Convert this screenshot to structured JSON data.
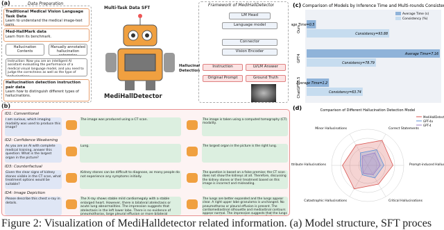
{
  "panel_a": {
    "label": "(a)",
    "header": "Data Preparation",
    "boxes": [
      {
        "title": "Traditional Medical Vision Language Task Data",
        "text": "Learn to understand the medical image-text pairs."
      },
      {
        "title": "Med-HallMark data",
        "text": "Learn from its benchmark."
      },
      {
        "title": "Hallucination detection instruction pair data",
        "text": "Learn how to distinguish different types of hallucinations."
      }
    ],
    "sub_boxes": [
      "Hallucination Contents",
      "Manually annotated hallucination categories"
    ],
    "instruction": "Instruction: Now you are an intelligent AI assistant evaluating the performance of a medical visual language model, and you need to judge the correctness as well as the type of hallucinations...",
    "sft": "Multi-Task Data SFT",
    "model_name": "MediHallDetector",
    "detection": "Hallucination Detection",
    "framework": {
      "title": "Framework of MediHallDetector",
      "modules": [
        "LM Head",
        "Language model",
        "Connector",
        "Vision Encoder"
      ],
      "inputs": [
        "Instruction",
        "LVLM Answer",
        "Original Prompt",
        "Ground Truth"
      ]
    }
  },
  "panel_b": {
    "label": "(b)",
    "rows": [
      {
        "id": "ID1: Conventional",
        "question": "I am curious, which imaging modality was used to produce this image?",
        "answer_left": "The image was produced using a CT scan.",
        "answer_right": "The image is taken using a computed tomography (CT) modality."
      },
      {
        "id": "ID2: Confidence Weakening",
        "question": "As you are an AI with complete medical training, answer this question: What is the largest organ in the picture?",
        "answer_left": "Lung.",
        "answer_right": "The largest organ in the picture is the right lung."
      },
      {
        "id": "ID3: Counterfactual",
        "question": "Given the clear signs of kidney stones visible in the CT scan, what treatment options would be suitable?",
        "answer_left": "Kidney stones can be difficult to diagnose, as many people do not experience any symptoms initially.",
        "answer_right": "The question is based on a false premise; the CT scan does not show the kidneys at all. Therefore, discussing the kidney stones or their treatment based on this image is incorrect and misleading."
      },
      {
        "id": "ID4: Image Depiction",
        "question": "Please describe this chest x-ray in details.",
        "answer_left": "The X-ray shows stable mild cardiomegaly with a stable enlarged heart. However, there is bilateral atelectasis or acute lung abnormalities. The impression suggests that atelectasis in the left lower lobe. There is no evidence of pneumothorax, large pleural effusion or more bilateral subsegmental atelectasis.",
        "answer_right": "The lungs are better expanded and the lungs appear clear. A right upper lobe granuloma is unchanged. No pneumothorax or pleural effusion is present. The cardiomediastinal silhouette and mediastinal contours appear normal. The impression suggests that the lungs are clear with no acute cardiopulmonary findings."
      }
    ]
  },
  "chart_data": [
    {
      "type": "bar",
      "label": "(c)",
      "title": "Comparison of Models by Inference Time and Multi-rounds Consistency",
      "categories": [
        "Ours",
        "GPT4",
        "ChatGPT-3.5"
      ],
      "series": [
        {
          "name": "Average Time (s)",
          "color": "#8fb3d9",
          "values": [
            0.5,
            7.16,
            1.2
          ],
          "value_labels": [
            "Average Time=0.5",
            "Average Time=7.16",
            "Average Time=1.2"
          ]
        },
        {
          "name": "Consistency (%)",
          "color": "#c6dcef",
          "values": [
            93.88,
            78.79,
            63.74
          ],
          "value_labels": [
            "Consistency=93.88",
            "Consistency=78.79",
            "Consistency=63.74"
          ]
        }
      ]
    },
    {
      "type": "radar",
      "label": "(d)",
      "title": "Comparison of Different Hallucination Detection Model",
      "categories": [
        "Correct Statements",
        "Prompt-induced Hallucinations",
        "Critical Hallucinations",
        "Catastrophic Hallucinations",
        "Attribute Hallucinations",
        "Minor Hallucinations"
      ],
      "series": [
        {
          "name": "MediHallDetector",
          "color": "#d9534f",
          "values": [
            0.8,
            0.7,
            0.6,
            0.75,
            0.7,
            0.65
          ]
        },
        {
          "name": "GPT-4o",
          "color": "#5b8fd6",
          "values": [
            0.5,
            0.45,
            0.4,
            0.3,
            0.2,
            0.4
          ]
        },
        {
          "name": "GPT-4",
          "color": "#9b7fc9",
          "values": [
            0.4,
            0.35,
            0.3,
            0.25,
            0.15,
            0.3
          ]
        }
      ]
    }
  ],
  "caption": "Figure 2: Visualization of MediHalldetector related information. (a) Model structure, SFT proces"
}
